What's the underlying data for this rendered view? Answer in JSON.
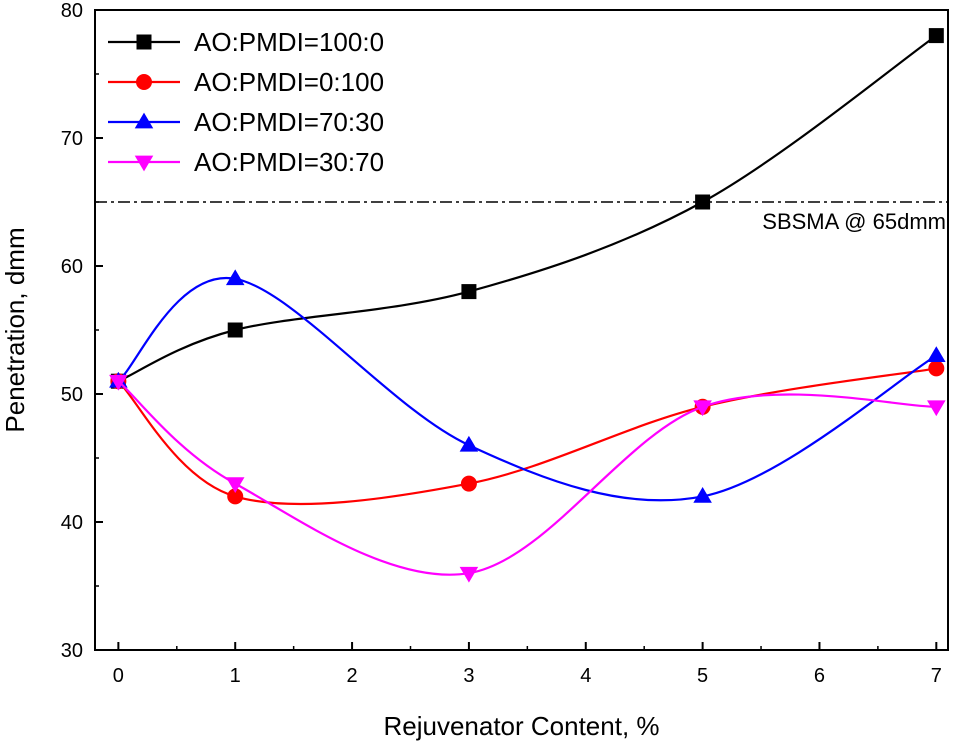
{
  "chart_data": {
    "type": "line",
    "title": "",
    "xlabel": "Rejuvenator Content, %",
    "ylabel": "Penetration, dmm",
    "xlim": [
      -0.2,
      7.1
    ],
    "ylim": [
      30,
      80
    ],
    "xticks": [
      0,
      1,
      2,
      3,
      4,
      5,
      6,
      7
    ],
    "yticks": [
      30,
      40,
      50,
      60,
      70,
      80
    ],
    "grid": false,
    "legend_position": "top-left",
    "smooth": true,
    "x": [
      0,
      1,
      3,
      5,
      7
    ],
    "series": [
      {
        "name": "AO:PMDI=100:0",
        "values": [
          51,
          55,
          58,
          65,
          78
        ],
        "color": "#000000",
        "marker": "square"
      },
      {
        "name": "AO:PMDI=0:100",
        "values": [
          51,
          42,
          43,
          49,
          52
        ],
        "color": "#ff0000",
        "marker": "circle"
      },
      {
        "name": "AO:PMDI=70:30",
        "values": [
          51,
          59,
          46,
          42,
          53
        ],
        "color": "#0000ff",
        "marker": "triangle-up"
      },
      {
        "name": "AO:PMDI=30:70",
        "values": [
          51,
          43,
          36,
          49,
          49
        ],
        "color": "#ff00ff",
        "marker": "triangle-down"
      }
    ],
    "reference_line": {
      "y": 65,
      "label": "SBSMA @ 65dmm",
      "style": "dash-dot"
    }
  }
}
